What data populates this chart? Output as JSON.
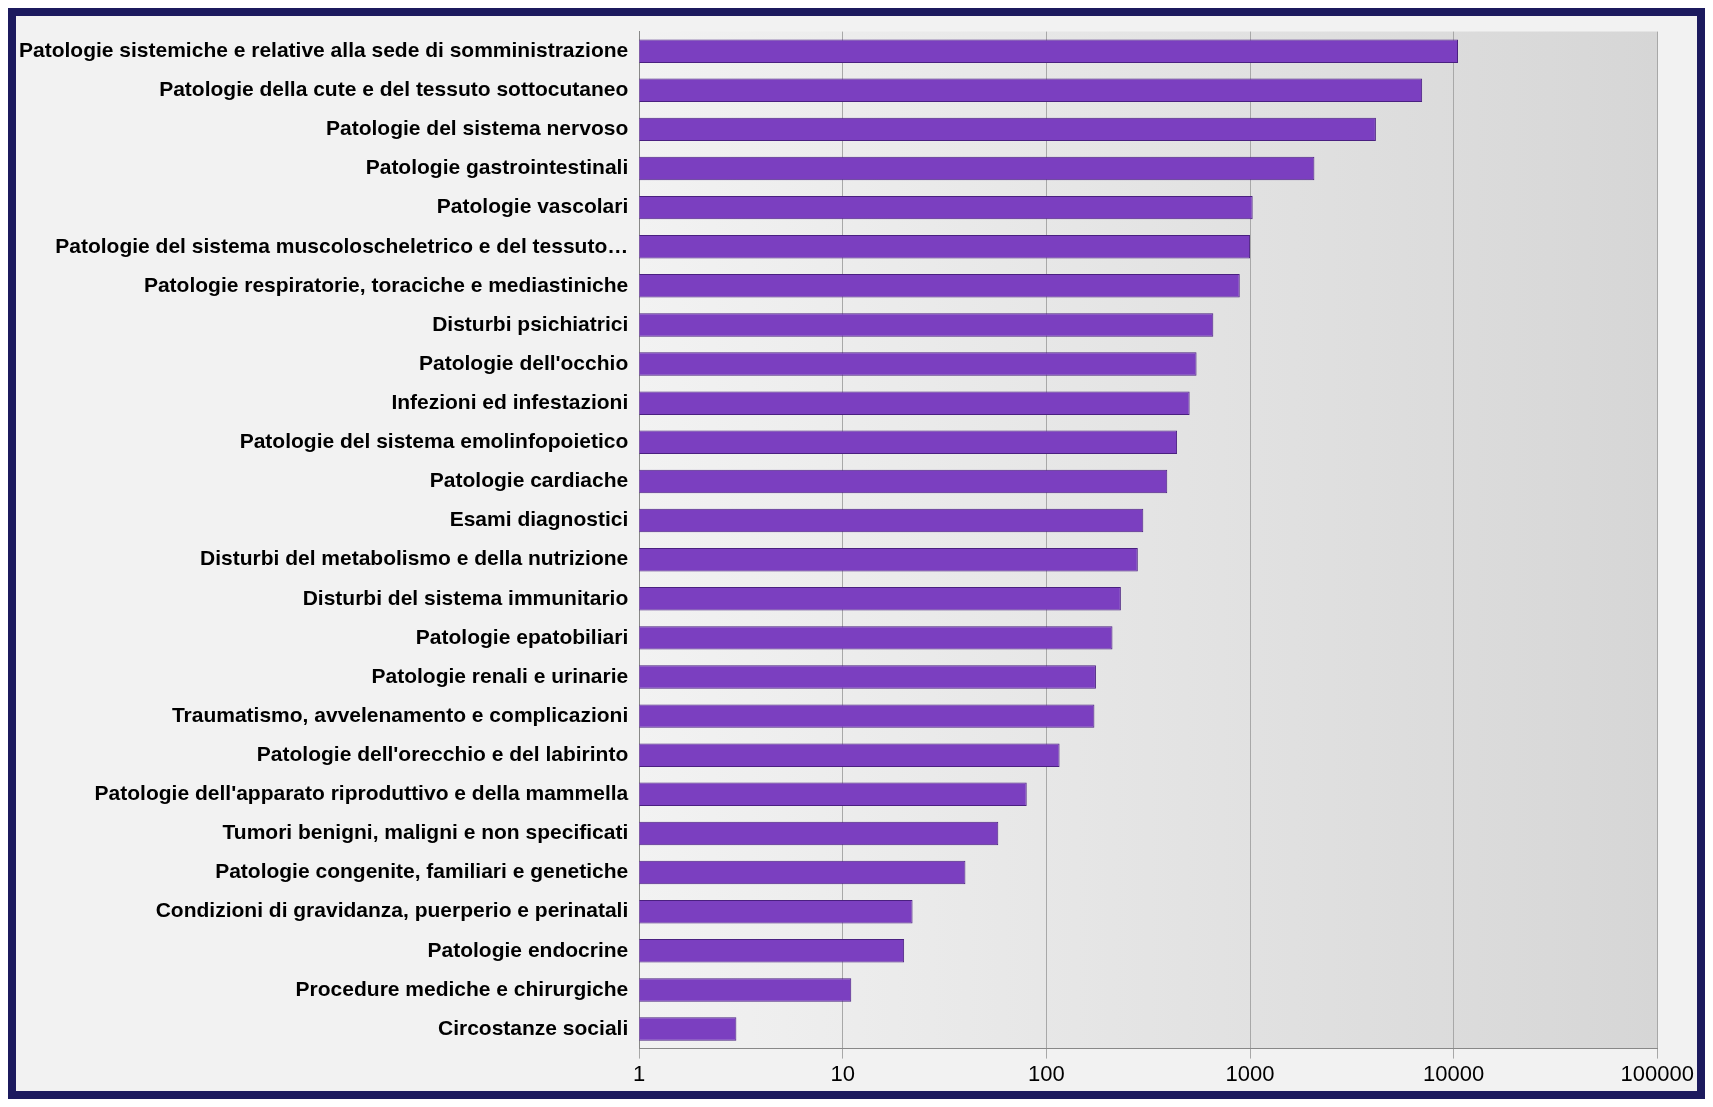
{
  "chart_data": {
    "type": "bar",
    "orientation": "horizontal",
    "log": "x",
    "grid": "x",
    "categories": [
      "Patologie sistemiche e relative alla sede di somministrazione",
      "Patologie della cute e del tessuto sottocutaneo",
      "Patologie del sistema nervoso",
      "Patologie gastrointestinali",
      "Patologie vascolari",
      "Patologie del sistema muscoloscheletrico e del tessuto…",
      "Patologie respiratorie, toraciche e mediastiniche",
      "Disturbi psichiatrici",
      "Patologie dell'occhio",
      "Infezioni ed infestazioni",
      "Patologie del sistema emolinfopoietico",
      "Patologie cardiache",
      "Esami diagnostici",
      "Disturbi del metabolismo e della nutrizione",
      "Disturbi del sistema immunitario",
      "Patologie epatobiliari",
      "Patologie renali e urinarie",
      "Traumatismo, avvelenamento e complicazioni",
      "Patologie dell'orecchio e del labirinto",
      "Patologie dell'apparato riproduttivo e della mammella",
      "Tumori benigni, maligni e non specificati",
      "Patologie congenite, familiari e genetiche",
      "Condizioni di gravidanza, puerperio e perinatali",
      "Patologie endocrine",
      "Procedure mediche e chirurgiche",
      "Circostanze sociali"
    ],
    "values": [
      10500,
      7000,
      4150,
      2070,
      1030,
      1000,
      890,
      660,
      546,
      505,
      438,
      392,
      299,
      281,
      232,
      211,
      175,
      172,
      116,
      80,
      58,
      40,
      22,
      20,
      11,
      3
    ],
    "color": "#7b3fc0",
    "xlim": [
      1,
      100000
    ],
    "xticks": [
      1,
      10,
      100,
      1000,
      10000,
      100000
    ]
  }
}
